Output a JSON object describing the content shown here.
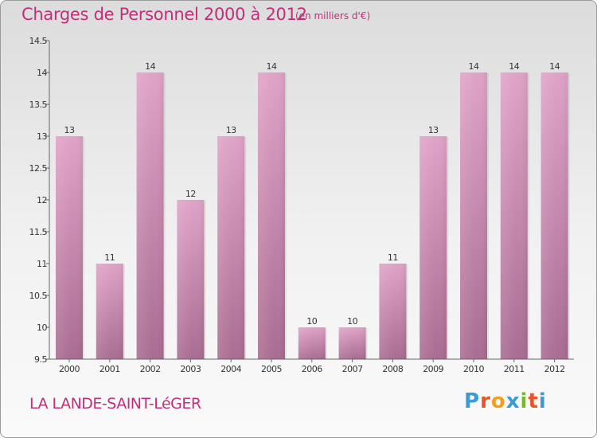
{
  "header": {
    "title": "Charges de Personnel 2000 à 2012",
    "subtitle": "(en milliers d'€)"
  },
  "footer": {
    "commune": "LA LANDE-SAINT-LéGER",
    "logo_letters": [
      "P",
      "r",
      "o",
      "x",
      "i",
      "t",
      "i"
    ],
    "logo_colors": [
      "#3a9bd5",
      "#e8542a",
      "#f0a020",
      "#3a9bd5",
      "#7ab828",
      "#e8542a",
      "#3a9bd5"
    ]
  },
  "chart_data": {
    "type": "bar",
    "title": "Charges de Personnel 2000 à 2012",
    "subtitle": "(en milliers d'€)",
    "categories": [
      "2000",
      "2001",
      "2002",
      "2003",
      "2004",
      "2005",
      "2006",
      "2007",
      "2008",
      "2009",
      "2010",
      "2011",
      "2012"
    ],
    "values": [
      13,
      11,
      14,
      12,
      13,
      14,
      10,
      10,
      11,
      13,
      14,
      14,
      14
    ],
    "data_labels": [
      "13",
      "11",
      "14",
      "12",
      "13",
      "14",
      "10",
      "10",
      "11",
      "13",
      "14",
      "14",
      "14"
    ],
    "ylim": [
      9.5,
      14.5
    ],
    "yticks": [
      9.5,
      10,
      10.5,
      11,
      11.5,
      12,
      12.5,
      13,
      13.5,
      14,
      14.5
    ],
    "ytick_labels": [
      "9.5",
      "10",
      "10.5",
      "11",
      "11.5",
      "12",
      "12.5",
      "13",
      "13.5",
      "14",
      "14.5"
    ],
    "grid": false,
    "colors": {
      "bar_top": "#e0a2c8",
      "bar_bottom": "#a96c92",
      "axis": "#666666",
      "text": "#333333"
    }
  }
}
